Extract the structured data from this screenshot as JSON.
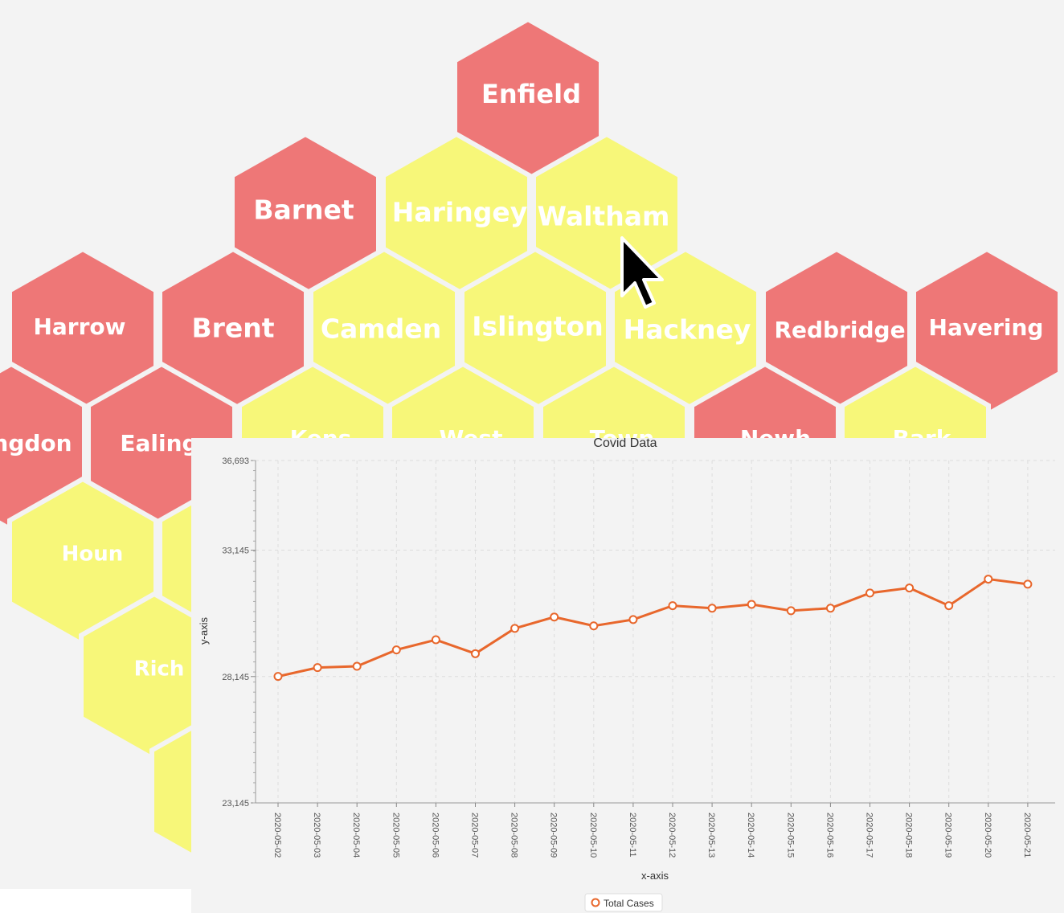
{
  "colors": {
    "red": "#ee7777",
    "yellow": "#f7f779",
    "line": "#e8672c",
    "background": "#f3f3f3"
  },
  "hexmap": {
    "hexes": [
      {
        "label": "Enfield",
        "color": "red"
      },
      {
        "label": "Barnet",
        "color": "red"
      },
      {
        "label": "Haringey",
        "color": "yellow"
      },
      {
        "label": "Waltham",
        "color": "yellow"
      },
      {
        "label": "Harrow",
        "color": "red"
      },
      {
        "label": "Brent",
        "color": "red"
      },
      {
        "label": "Camden",
        "color": "yellow"
      },
      {
        "label": "Islington",
        "color": "yellow"
      },
      {
        "label": "Hackney",
        "color": "yellow"
      },
      {
        "label": "Redbridge",
        "color": "red"
      },
      {
        "label": "Havering",
        "color": "red"
      },
      {
        "label": "ngdon",
        "color": "red"
      },
      {
        "label": "Ealing",
        "color": "red"
      },
      {
        "label": "Kens",
        "color": "yellow"
      },
      {
        "label": "West",
        "color": "yellow"
      },
      {
        "label": "Town",
        "color": "yellow"
      },
      {
        "label": "Newh",
        "color": "red"
      },
      {
        "label": "Bark",
        "color": "yellow"
      },
      {
        "label": "Houn",
        "color": "yellow"
      },
      {
        "label": "",
        "color": "yellow"
      },
      {
        "label": "Rich",
        "color": "yellow"
      },
      {
        "label": "",
        "color": "yellow"
      }
    ]
  },
  "cursor": {
    "icon": "mouse-pointer-icon"
  },
  "chart_data": {
    "type": "line",
    "title": "Covid Data",
    "xlabel": "x-axis",
    "ylabel": "y-axis",
    "ylim": [
      23145,
      36693
    ],
    "yticks": [
      "36,693",
      "33,145",
      "28,145",
      "23,145"
    ],
    "ytick_values": [
      36693,
      33145,
      28145,
      23145
    ],
    "grid": true,
    "legend_position": "bottom-center",
    "categories": [
      "2020-05-02",
      "2020-05-03",
      "2020-05-04",
      "2020-05-05",
      "2020-05-06",
      "2020-05-07",
      "2020-05-08",
      "2020-05-09",
      "2020-05-10",
      "2020-05-11",
      "2020-05-12",
      "2020-05-13",
      "2020-05-14",
      "2020-05-15",
      "2020-05-16",
      "2020-05-17",
      "2020-05-18",
      "2020-05-19",
      "2020-05-20",
      "2020-05-21"
    ],
    "series": [
      {
        "name": "Total Cases",
        "values": [
          28150,
          28500,
          28550,
          29200,
          29600,
          29050,
          30050,
          30500,
          30150,
          30400,
          30950,
          30850,
          31000,
          30750,
          30850,
          31450,
          31650,
          30950,
          32000,
          31800
        ]
      }
    ]
  }
}
